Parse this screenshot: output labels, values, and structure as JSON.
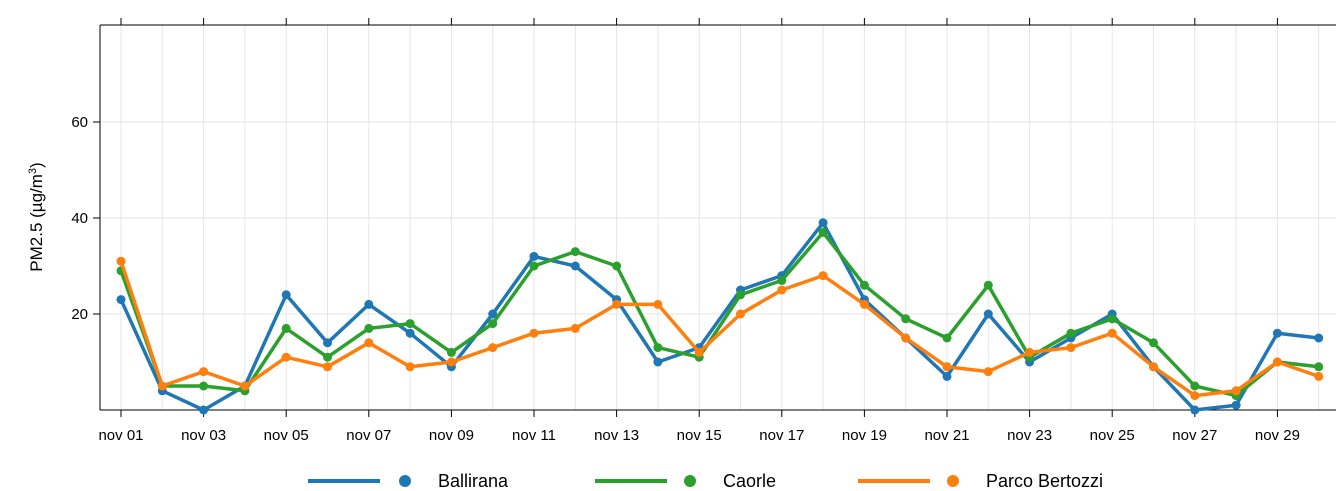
{
  "chart_data": {
    "type": "line",
    "title": "",
    "ylabel": "PM2.5 (µg/m³)",
    "ylabel_parts": {
      "main": "PM2.5 (µg/m",
      "sup": "3",
      "tail": ")"
    },
    "xlabel": "",
    "x": [
      "nov 01",
      "nov 02",
      "nov 03",
      "nov 04",
      "nov 05",
      "nov 06",
      "nov 07",
      "nov 08",
      "nov 09",
      "nov 10",
      "nov 11",
      "nov 12",
      "nov 13",
      "nov 14",
      "nov 15",
      "nov 16",
      "nov 17",
      "nov 18",
      "nov 19",
      "nov 20",
      "nov 21",
      "nov 22",
      "nov 23",
      "nov 24",
      "nov 25",
      "nov 26",
      "nov 27",
      "nov 28",
      "nov 29",
      "nov 30"
    ],
    "x_tick_labels": [
      "nov 01",
      "nov 03",
      "nov 05",
      "nov 07",
      "nov 09",
      "nov 11",
      "nov 13",
      "nov 15",
      "nov 17",
      "nov 19",
      "nov 21",
      "nov 23",
      "nov 25",
      "nov 27",
      "nov 29"
    ],
    "y_ticks": [
      20,
      40,
      60
    ],
    "ylim": [
      0,
      80
    ],
    "grid": true,
    "legend_position": "bottom",
    "series": [
      {
        "name": "Ballirana",
        "color": "#1f77b4",
        "values": [
          23,
          4,
          0,
          5,
          24,
          14,
          22,
          16,
          9,
          20,
          32,
          30,
          23,
          10,
          13,
          25,
          28,
          39,
          23,
          15,
          7,
          20,
          10,
          15,
          20,
          9,
          0,
          1,
          16,
          15
        ]
      },
      {
        "name": "Caorle",
        "color": "#2ca02c",
        "values": [
          29,
          5,
          5,
          4,
          17,
          11,
          17,
          18,
          12,
          18,
          30,
          33,
          30,
          13,
          11,
          24,
          27,
          37,
          26,
          19,
          15,
          26,
          11,
          16,
          19,
          14,
          5,
          3,
          10,
          9
        ]
      },
      {
        "name": "Parco Bertozzi",
        "color": "#ff7f0e",
        "values": [
          31,
          5,
          8,
          5,
          11,
          9,
          14,
          9,
          10,
          13,
          16,
          17,
          22,
          22,
          12,
          20,
          25,
          28,
          22,
          15,
          9,
          8,
          12,
          13,
          16,
          9,
          3,
          4,
          10,
          7
        ]
      }
    ]
  }
}
